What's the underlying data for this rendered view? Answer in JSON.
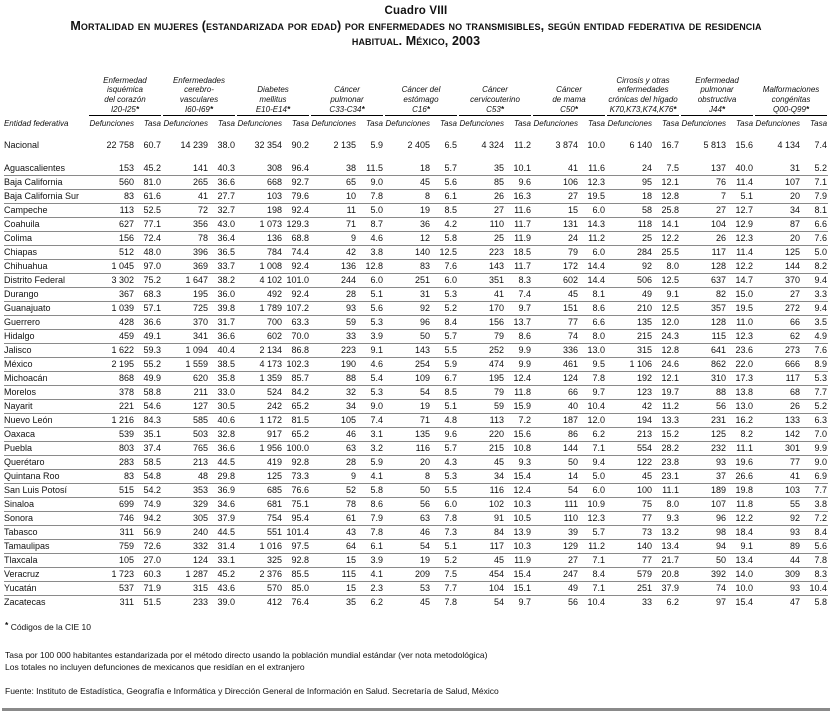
{
  "page": {
    "title": "Cuadro VIII",
    "subtitle": "Mortalidad en mujeres (estandarizada por edad) por enfermedades no transmisibles, según entidad federativa de residencia habitual. México, 2003"
  },
  "table": {
    "entity_header": "Entidad federativa",
    "defunciones_label": "Defunciones",
    "tasa_label": "Tasa",
    "code_mark": "*",
    "column_groups": [
      {
        "name_lines": [
          "Enfermedad",
          "isquémica",
          "del corazón"
        ],
        "code": "I20-I25"
      },
      {
        "name_lines": [
          "Enfermedades",
          "cerebro-",
          "vasculares"
        ],
        "code": "I60-I69"
      },
      {
        "name_lines": [
          "Diabetes",
          "mellitus"
        ],
        "code": "E10-E14"
      },
      {
        "name_lines": [
          "Cáncer",
          "pulmonar"
        ],
        "code": "C33-C34"
      },
      {
        "name_lines": [
          "Cáncer del",
          "estómago"
        ],
        "code": "C16"
      },
      {
        "name_lines": [
          "Cáncer",
          "cervicouterino"
        ],
        "code": "C53"
      },
      {
        "name_lines": [
          "Cáncer",
          "de mama"
        ],
        "code": "C50"
      },
      {
        "name_lines": [
          "Cirrosis y otras",
          "enfermedades",
          "crónicas del hígado"
        ],
        "code": "K70,K73,K74,K76"
      },
      {
        "name_lines": [
          "Enfermedad",
          "pulmonar",
          "obstructiva"
        ],
        "code": "J44"
      },
      {
        "name_lines": [
          "Malformaciones",
          "congénitas"
        ],
        "code": "Q00-Q99"
      }
    ],
    "national_row": {
      "entity": "Nacional",
      "values": [
        "22 758",
        "60.7",
        "14 239",
        "38.0",
        "32 354",
        "90.2",
        "2 135",
        "5.9",
        "2 405",
        "6.5",
        "4 324",
        "11.2",
        "3 874",
        "10.0",
        "6 140",
        "16.7",
        "5 813",
        "15.6",
        "4 134",
        "7.4"
      ]
    },
    "rows": [
      {
        "entity": "Aguascalientes",
        "values": [
          "153",
          "45.2",
          "141",
          "40.3",
          "308",
          "96.4",
          "38",
          "11.5",
          "18",
          "5.7",
          "35",
          "10.1",
          "41",
          "11.6",
          "24",
          "7.5",
          "137",
          "40.0",
          "31",
          "5.2"
        ]
      },
      {
        "entity": "Baja California",
        "values": [
          "560",
          "81.0",
          "265",
          "36.6",
          "668",
          "92.7",
          "65",
          "9.0",
          "45",
          "5.6",
          "85",
          "9.6",
          "106",
          "12.3",
          "95",
          "12.1",
          "76",
          "11.4",
          "107",
          "7.1"
        ]
      },
      {
        "entity": "Baja California Sur",
        "values": [
          "83",
          "61.6",
          "41",
          "27.7",
          "103",
          "79.6",
          "10",
          "7.8",
          "8",
          "6.1",
          "26",
          "16.3",
          "27",
          "19.5",
          "18",
          "12.8",
          "7",
          "5.1",
          "20",
          "7.9"
        ]
      },
      {
        "entity": "Campeche",
        "values": [
          "113",
          "52.5",
          "72",
          "32.7",
          "198",
          "92.4",
          "11",
          "5.0",
          "19",
          "8.5",
          "27",
          "11.6",
          "15",
          "6.0",
          "58",
          "25.8",
          "27",
          "12.7",
          "34",
          "8.1"
        ]
      },
      {
        "entity": "Coahuila",
        "values": [
          "627",
          "77.1",
          "356",
          "43.0",
          "1 073",
          "129.3",
          "71",
          "8.7",
          "36",
          "4.2",
          "110",
          "11.7",
          "131",
          "14.3",
          "118",
          "14.1",
          "104",
          "12.9",
          "87",
          "6.6"
        ]
      },
      {
        "entity": "Colima",
        "values": [
          "156",
          "72.4",
          "78",
          "36.4",
          "136",
          "68.8",
          "9",
          "4.6",
          "12",
          "5.8",
          "25",
          "11.9",
          "24",
          "11.2",
          "25",
          "12.2",
          "26",
          "12.3",
          "20",
          "7.6"
        ]
      },
      {
        "entity": "Chiapas",
        "values": [
          "512",
          "48.0",
          "396",
          "36.5",
          "784",
          "74.4",
          "42",
          "3.8",
          "140",
          "12.5",
          "223",
          "18.5",
          "79",
          "6.0",
          "284",
          "25.5",
          "117",
          "11.4",
          "125",
          "5.0"
        ]
      },
      {
        "entity": "Chihuahua",
        "values": [
          "1 045",
          "97.0",
          "369",
          "33.7",
          "1 008",
          "92.4",
          "136",
          "12.8",
          "83",
          "7.6",
          "143",
          "11.7",
          "172",
          "14.4",
          "92",
          "8.0",
          "128",
          "12.2",
          "144",
          "8.2"
        ]
      },
      {
        "entity": "Distrito Federal",
        "values": [
          "3 302",
          "75.2",
          "1 647",
          "38.2",
          "4 102",
          "101.0",
          "244",
          "6.0",
          "251",
          "6.0",
          "351",
          "8.3",
          "602",
          "14.4",
          "506",
          "12.5",
          "637",
          "14.7",
          "370",
          "9.4"
        ]
      },
      {
        "entity": "Durango",
        "values": [
          "367",
          "68.3",
          "195",
          "36.0",
          "492",
          "92.4",
          "28",
          "5.1",
          "31",
          "5.3",
          "41",
          "7.4",
          "45",
          "8.1",
          "49",
          "9.1",
          "82",
          "15.0",
          "27",
          "3.3"
        ]
      },
      {
        "entity": "Guanajuato",
        "values": [
          "1 039",
          "57.1",
          "725",
          "39.8",
          "1 789",
          "107.2",
          "93",
          "5.6",
          "92",
          "5.2",
          "170",
          "9.7",
          "151",
          "8.6",
          "210",
          "12.5",
          "357",
          "19.5",
          "272",
          "9.4"
        ]
      },
      {
        "entity": "Guerrero",
        "values": [
          "428",
          "36.6",
          "370",
          "31.7",
          "700",
          "63.3",
          "59",
          "5.3",
          "96",
          "8.4",
          "156",
          "13.7",
          "77",
          "6.6",
          "135",
          "12.0",
          "128",
          "11.0",
          "66",
          "3.5"
        ]
      },
      {
        "entity": "Hidalgo",
        "values": [
          "459",
          "49.1",
          "341",
          "36.6",
          "602",
          "70.0",
          "33",
          "3.9",
          "50",
          "5.7",
          "79",
          "8.6",
          "74",
          "8.0",
          "215",
          "24.3",
          "115",
          "12.3",
          "62",
          "4.9"
        ]
      },
      {
        "entity": "Jalisco",
        "values": [
          "1 622",
          "59.3",
          "1 094",
          "40.4",
          "2 134",
          "86.8",
          "223",
          "9.1",
          "143",
          "5.5",
          "252",
          "9.9",
          "336",
          "13.0",
          "315",
          "12.8",
          "641",
          "23.6",
          "273",
          "7.6"
        ]
      },
      {
        "entity": "México",
        "values": [
          "2 195",
          "55.2",
          "1 559",
          "38.5",
          "4 173",
          "102.3",
          "190",
          "4.6",
          "254",
          "5.9",
          "474",
          "9.9",
          "461",
          "9.5",
          "1 106",
          "24.6",
          "862",
          "22.0",
          "666",
          "8.9"
        ]
      },
      {
        "entity": "Michoacán",
        "values": [
          "868",
          "49.9",
          "620",
          "35.8",
          "1 359",
          "85.7",
          "88",
          "5.4",
          "109",
          "6.7",
          "195",
          "12.4",
          "124",
          "7.8",
          "192",
          "12.1",
          "310",
          "17.3",
          "117",
          "5.3"
        ]
      },
      {
        "entity": "Morelos",
        "values": [
          "378",
          "58.8",
          "211",
          "33.0",
          "524",
          "84.2",
          "32",
          "5.3",
          "54",
          "8.5",
          "79",
          "11.8",
          "66",
          "9.7",
          "123",
          "19.7",
          "88",
          "13.8",
          "68",
          "7.7"
        ]
      },
      {
        "entity": "Nayarit",
        "values": [
          "221",
          "54.6",
          "127",
          "30.5",
          "242",
          "65.2",
          "34",
          "9.0",
          "19",
          "5.1",
          "59",
          "15.9",
          "40",
          "10.4",
          "42",
          "11.2",
          "56",
          "13.0",
          "26",
          "5.2"
        ]
      },
      {
        "entity": "Nuevo León",
        "values": [
          "1 216",
          "84.3",
          "585",
          "40.6",
          "1 172",
          "81.5",
          "105",
          "7.4",
          "71",
          "4.8",
          "113",
          "7.2",
          "187",
          "12.0",
          "194",
          "13.3",
          "231",
          "16.2",
          "133",
          "6.3"
        ]
      },
      {
        "entity": "Oaxaca",
        "values": [
          "539",
          "35.1",
          "503",
          "32.8",
          "917",
          "65.2",
          "46",
          "3.1",
          "135",
          "9.6",
          "220",
          "15.6",
          "86",
          "6.2",
          "213",
          "15.2",
          "125",
          "8.2",
          "142",
          "7.0"
        ]
      },
      {
        "entity": "Puebla",
        "values": [
          "803",
          "37.4",
          "765",
          "36.6",
          "1 956",
          "100.0",
          "63",
          "3.2",
          "116",
          "5.7",
          "215",
          "10.8",
          "144",
          "7.1",
          "554",
          "28.2",
          "232",
          "11.1",
          "301",
          "9.9"
        ]
      },
      {
        "entity": "Querétaro",
        "values": [
          "283",
          "58.5",
          "213",
          "44.5",
          "419",
          "92.8",
          "28",
          "5.9",
          "20",
          "4.3",
          "45",
          "9.3",
          "50",
          "9.4",
          "122",
          "23.8",
          "93",
          "19.6",
          "77",
          "9.0"
        ]
      },
      {
        "entity": "Quintana Roo",
        "values": [
          "83",
          "54.8",
          "48",
          "29.8",
          "125",
          "73.3",
          "9",
          "4.1",
          "8",
          "5.3",
          "34",
          "15.4",
          "14",
          "5.0",
          "45",
          "23.1",
          "37",
          "26.6",
          "41",
          "6.9"
        ]
      },
      {
        "entity": "San Luis Potosí",
        "values": [
          "515",
          "54.2",
          "353",
          "36.9",
          "685",
          "76.6",
          "52",
          "5.8",
          "50",
          "5.5",
          "116",
          "12.4",
          "54",
          "6.0",
          "100",
          "11.1",
          "189",
          "19.8",
          "103",
          "7.7"
        ]
      },
      {
        "entity": "Sinaloa",
        "values": [
          "699",
          "74.9",
          "329",
          "34.6",
          "681",
          "75.1",
          "78",
          "8.6",
          "56",
          "6.0",
          "102",
          "10.3",
          "111",
          "10.9",
          "75",
          "8.0",
          "107",
          "11.8",
          "55",
          "3.8"
        ]
      },
      {
        "entity": "Sonora",
        "values": [
          "746",
          "94.2",
          "305",
          "37.9",
          "754",
          "95.4",
          "61",
          "7.9",
          "63",
          "7.8",
          "91",
          "10.5",
          "110",
          "12.3",
          "77",
          "9.3",
          "96",
          "12.2",
          "92",
          "7.2"
        ]
      },
      {
        "entity": "Tabasco",
        "values": [
          "311",
          "56.9",
          "240",
          "44.5",
          "551",
          "101.4",
          "43",
          "7.8",
          "46",
          "7.3",
          "84",
          "13.9",
          "39",
          "5.7",
          "73",
          "13.2",
          "98",
          "18.4",
          "93",
          "8.4"
        ]
      },
      {
        "entity": "Tamaulipas",
        "values": [
          "759",
          "72.6",
          "332",
          "31.4",
          "1 016",
          "97.5",
          "64",
          "6.1",
          "54",
          "5.1",
          "117",
          "10.3",
          "129",
          "11.2",
          "140",
          "13.4",
          "94",
          "9.1",
          "89",
          "5.6"
        ]
      },
      {
        "entity": "Tlaxcala",
        "values": [
          "105",
          "27.0",
          "124",
          "33.1",
          "325",
          "92.8",
          "15",
          "3.9",
          "19",
          "5.2",
          "45",
          "11.9",
          "27",
          "7.1",
          "77",
          "21.7",
          "50",
          "13.4",
          "44",
          "7.8"
        ]
      },
      {
        "entity": "Veracruz",
        "values": [
          "1 723",
          "60.3",
          "1 287",
          "45.2",
          "2 376",
          "85.5",
          "115",
          "4.1",
          "209",
          "7.5",
          "454",
          "15.4",
          "247",
          "8.4",
          "579",
          "20.8",
          "392",
          "14.0",
          "309",
          "8.3"
        ]
      },
      {
        "entity": "Yucatán",
        "values": [
          "537",
          "71.9",
          "315",
          "43.6",
          "570",
          "85.0",
          "15",
          "2.3",
          "53",
          "7.7",
          "104",
          "15.1",
          "49",
          "7.1",
          "251",
          "37.9",
          "74",
          "10.0",
          "93",
          "10.4"
        ]
      },
      {
        "entity": "Zacatecas",
        "values": [
          "311",
          "51.5",
          "233",
          "39.0",
          "412",
          "76.4",
          "35",
          "6.2",
          "45",
          "7.8",
          "54",
          "9.7",
          "56",
          "10.4",
          "33",
          "6.2",
          "97",
          "15.4",
          "47",
          "5.8"
        ]
      }
    ]
  },
  "footnotes": {
    "cie_mark": "*",
    "cie_note": "Códigos de la CIE 10",
    "rate_note": "Tasa por 100 000 habitantes estandarizada por el método directo usando la población mundial estándar (ver nota metodológica)",
    "totals_note": "Los totales no incluyen defunciones de mexicanos que residían en el extranjero",
    "source": "Fuente: Instituto de Estadística, Geografía e Informática y Dirección General de Información en Salud. Secretaría de Salud, México"
  }
}
